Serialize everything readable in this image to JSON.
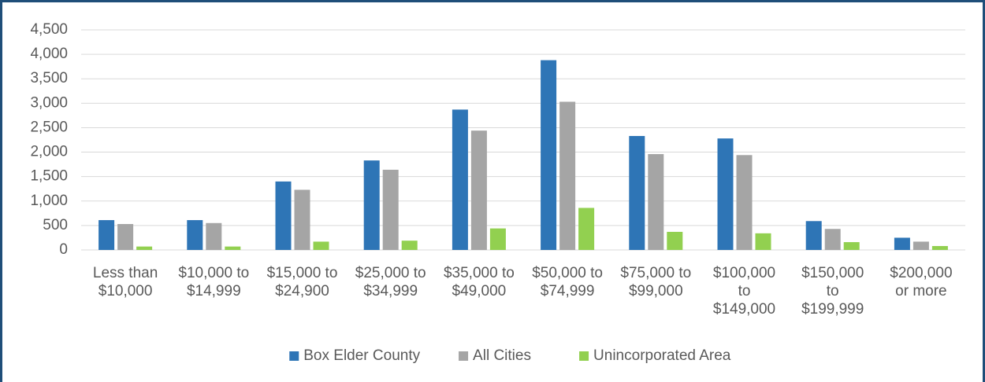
{
  "chart_data": {
    "type": "bar",
    "categories": [
      "Less than $10,000",
      "$10,000 to $14,999",
      "$15,000 to $24,900",
      "$25,000 to $34,999",
      "$35,000 to $49,000",
      "$50,000 to $74,999",
      "$75,000 to $99,000",
      "$100,000 to $149,000",
      "$150,000 to $199,999",
      "$200,000 or more"
    ],
    "series": [
      {
        "name": "Box Elder County",
        "color": "#2e75b6",
        "values": [
          610,
          610,
          1400,
          1830,
          2870,
          3880,
          2330,
          2280,
          590,
          250
        ]
      },
      {
        "name": "All Cities",
        "color": "#a5a5a5",
        "values": [
          530,
          550,
          1230,
          1640,
          2440,
          3030,
          1960,
          1940,
          430,
          170
        ]
      },
      {
        "name": "Unincorporated Area",
        "color": "#92d050",
        "values": [
          70,
          70,
          170,
          190,
          440,
          860,
          370,
          340,
          160,
          80
        ]
      }
    ],
    "ylim": [
      0,
      4500
    ],
    "yticks": [
      0,
      500,
      {
        "value": 1000,
        "label": "1,000"
      },
      {
        "value": 1500,
        "label": "1,500"
      },
      {
        "value": 2000,
        "label": "2,000"
      },
      {
        "value": 2500,
        "label": "2,500"
      },
      {
        "value": 3000,
        "label": "3,000"
      },
      {
        "value": 3500,
        "label": "3,500"
      },
      {
        "value": 4000,
        "label": "4,000"
      },
      {
        "value": 4500,
        "label": "4,500"
      }
    ],
    "grid": true,
    "legend": "bottom"
  }
}
